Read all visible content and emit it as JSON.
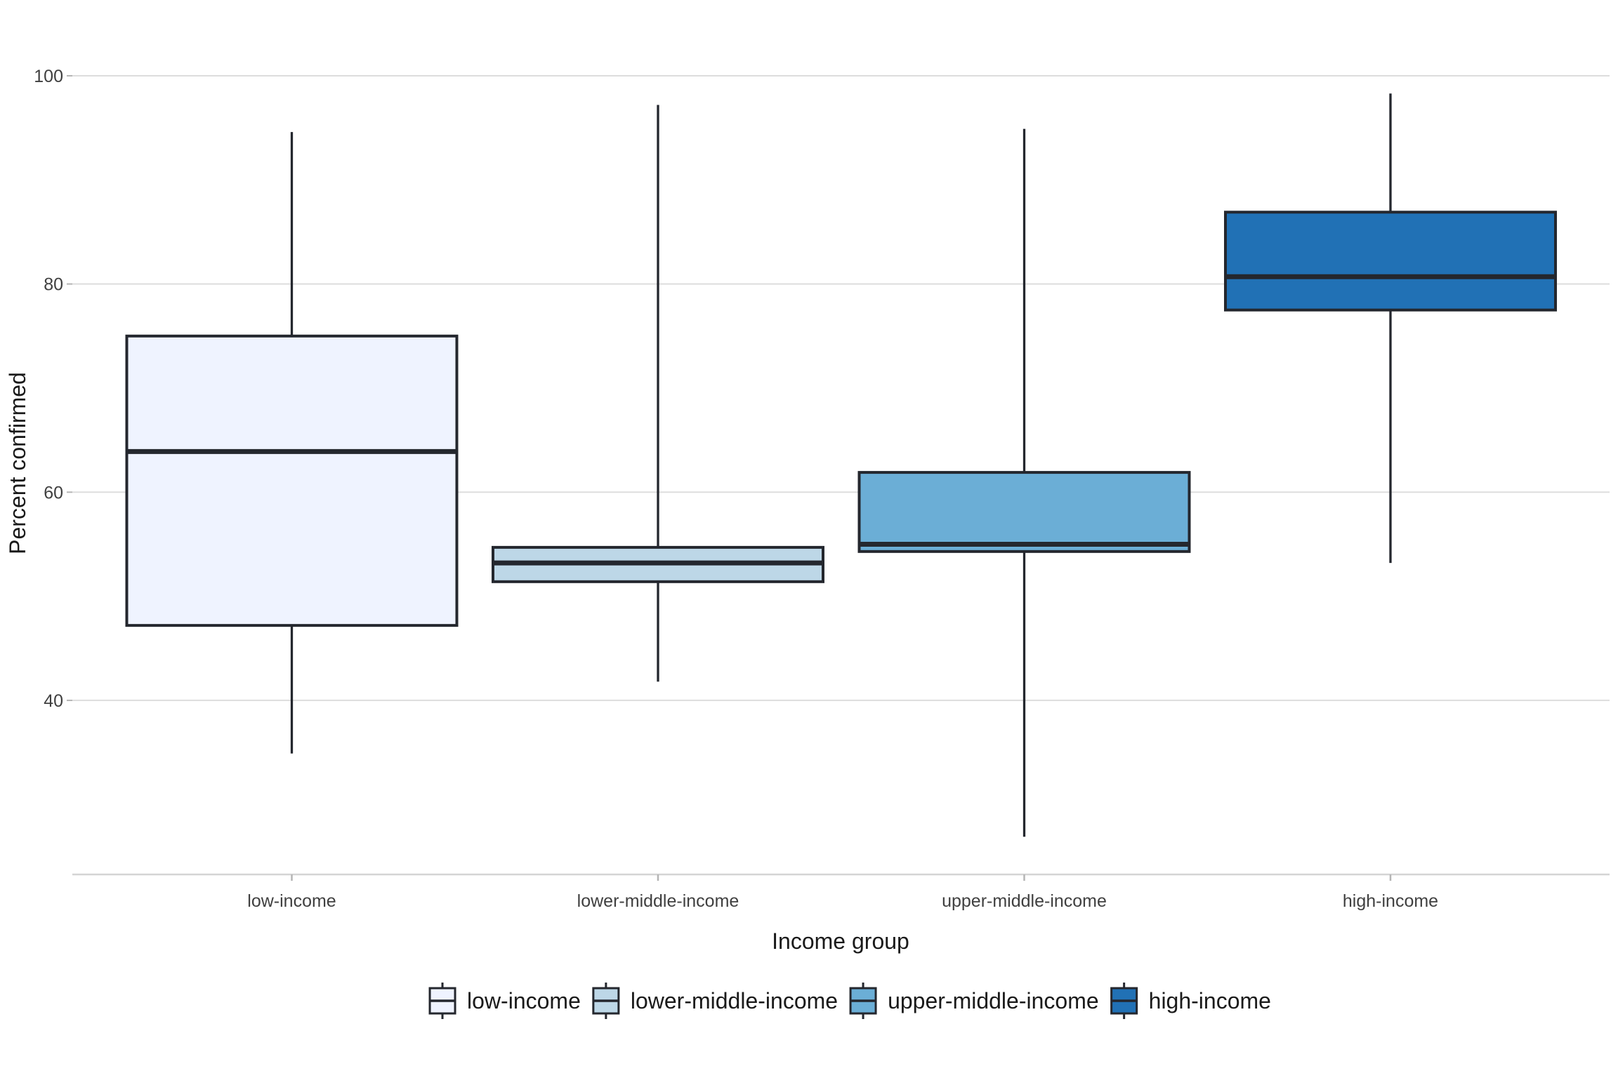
{
  "chart_data": {
    "type": "boxplot",
    "title": "",
    "xlabel": "Income group",
    "ylabel": "Percent confirmed",
    "categories": [
      "low-income",
      "lower-middle-income",
      "upper-middle-income",
      "high-income"
    ],
    "y_ticks": [
      40,
      60,
      80,
      100
    ],
    "ylim": [
      23,
      105
    ],
    "grid": "horizontal-major",
    "legend_position": "bottom",
    "series": [
      {
        "name": "low-income",
        "min": 34.9,
        "q1": 47.2,
        "median": 63.9,
        "q3": 75.0,
        "max": 94.6,
        "fill": "#EFF3FF"
      },
      {
        "name": "lower-middle-income",
        "min": 41.8,
        "q1": 51.4,
        "median": 53.2,
        "q3": 54.7,
        "max": 97.2,
        "fill": "#BDD7E7"
      },
      {
        "name": "upper-middle-income",
        "min": 26.9,
        "q1": 54.3,
        "median": 55.0,
        "q3": 61.9,
        "max": 94.9,
        "fill": "#6BAED6"
      },
      {
        "name": "high-income",
        "min": 53.2,
        "q1": 77.5,
        "median": 80.7,
        "q3": 86.9,
        "max": 98.3,
        "fill": "#2171B5"
      }
    ],
    "legend": {
      "entries": [
        {
          "label": "low-income",
          "color": "#EFF3FF"
        },
        {
          "label": "lower-middle-income",
          "color": "#BDD7E7"
        },
        {
          "label": "upper-middle-income",
          "color": "#6BAED6"
        },
        {
          "label": "high-income",
          "color": "#2171B5"
        }
      ]
    },
    "colors": {
      "background": "#ffffff",
      "box_border": "#24272e",
      "median_line": "#24272e",
      "whisker": "#24272e",
      "gridline": "#dddddd",
      "axis_line": "#d4d4d4",
      "tick_mark": "#b5b5b5",
      "tick_label": "#404040",
      "axis_title": "#1a1a1a",
      "legend_text": "#1a1a1a"
    }
  }
}
